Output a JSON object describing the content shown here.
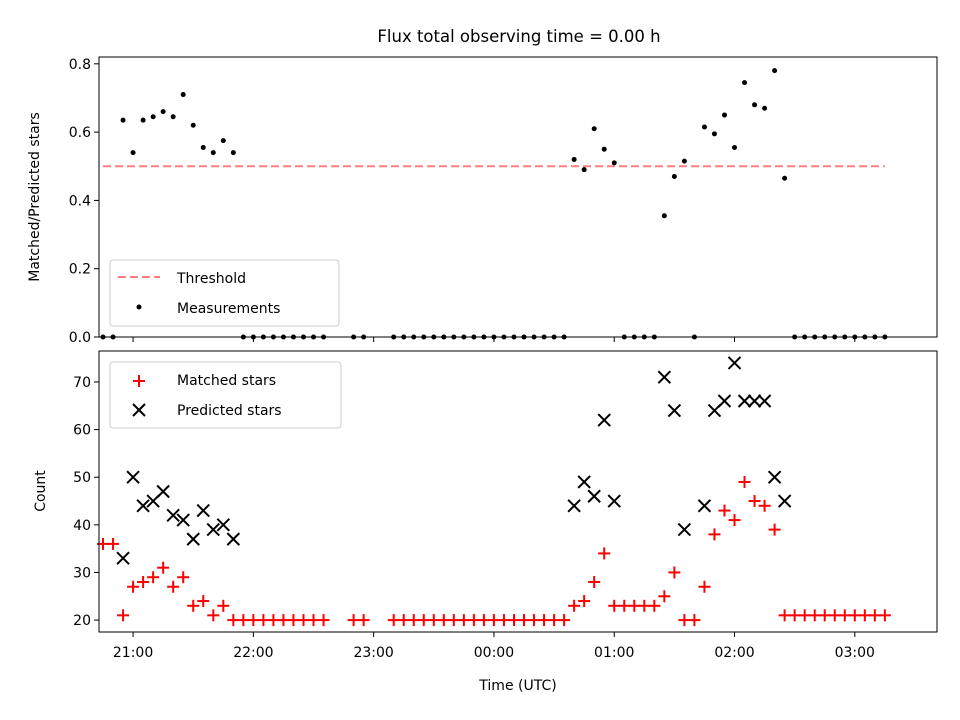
{
  "title": "Flux total observing time = 0.00 h",
  "chart_data": [
    {
      "type": "scatter",
      "ylabel": "Matched/Predicted stars",
      "xlabel": "",
      "ylim": [
        0,
        0.82
      ],
      "yticks": [
        0.0,
        0.2,
        0.4,
        0.6,
        0.8
      ],
      "ytick_labels": [
        "0.0",
        "0.2",
        "0.4",
        "0.6",
        "0.8"
      ],
      "xlim": [
        "20:43",
        "03:41"
      ],
      "legend_position": "lower-left",
      "legend": [
        {
          "label": "Threshold",
          "marker": "dashed-line",
          "color": "#ff7f7f"
        },
        {
          "label": "Measurements",
          "marker": "dot",
          "color": "#000000"
        }
      ],
      "threshold": {
        "value": 0.5,
        "x_start": "20:45",
        "x_end": "03:15",
        "color": "#ff7f7f"
      },
      "series": [
        {
          "name": "Measurements",
          "color": "#000000",
          "points": [
            [
              "20:45",
              0.0
            ],
            [
              "20:50",
              0.0
            ],
            [
              "20:55",
              0.635
            ],
            [
              "21:00",
              0.54
            ],
            [
              "21:05",
              0.635
            ],
            [
              "21:10",
              0.645
            ],
            [
              "21:15",
              0.66
            ],
            [
              "21:20",
              0.645
            ],
            [
              "21:25",
              0.71
            ],
            [
              "21:30",
              0.62
            ],
            [
              "21:35",
              0.555
            ],
            [
              "21:40",
              0.54
            ],
            [
              "21:45",
              0.575
            ],
            [
              "21:50",
              0.54
            ],
            [
              "21:55",
              0.0
            ],
            [
              "22:00",
              0.0
            ],
            [
              "22:05",
              0.0
            ],
            [
              "22:10",
              0.0
            ],
            [
              "22:15",
              0.0
            ],
            [
              "22:20",
              0.0
            ],
            [
              "22:25",
              0.0
            ],
            [
              "22:30",
              0.0
            ],
            [
              "22:35",
              0.0
            ],
            [
              "22:50",
              0.0
            ],
            [
              "22:55",
              0.0
            ],
            [
              "23:10",
              0.0
            ],
            [
              "23:15",
              0.0
            ],
            [
              "23:20",
              0.0
            ],
            [
              "23:25",
              0.0
            ],
            [
              "23:30",
              0.0
            ],
            [
              "23:35",
              0.0
            ],
            [
              "23:40",
              0.0
            ],
            [
              "23:45",
              0.0
            ],
            [
              "23:50",
              0.0
            ],
            [
              "23:55",
              0.0
            ],
            [
              "00:00",
              0.0
            ],
            [
              "00:05",
              0.0
            ],
            [
              "00:10",
              0.0
            ],
            [
              "00:15",
              0.0
            ],
            [
              "00:20",
              0.0
            ],
            [
              "00:25",
              0.0
            ],
            [
              "00:30",
              0.0
            ],
            [
              "00:35",
              0.0
            ],
            [
              "00:40",
              0.52
            ],
            [
              "00:45",
              0.49
            ],
            [
              "00:50",
              0.61
            ],
            [
              "00:55",
              0.55
            ],
            [
              "01:00",
              0.51
            ],
            [
              "01:05",
              0.0
            ],
            [
              "01:10",
              0.0
            ],
            [
              "01:15",
              0.0
            ],
            [
              "01:20",
              0.0
            ],
            [
              "01:25",
              0.355
            ],
            [
              "01:30",
              0.47
            ],
            [
              "01:35",
              0.515
            ],
            [
              "01:40",
              0.0
            ],
            [
              "01:45",
              0.615
            ],
            [
              "01:50",
              0.595
            ],
            [
              "01:55",
              0.65
            ],
            [
              "02:00",
              0.555
            ],
            [
              "02:05",
              0.745
            ],
            [
              "02:10",
              0.68
            ],
            [
              "02:15",
              0.67
            ],
            [
              "02:20",
              0.78
            ],
            [
              "02:25",
              0.465
            ],
            [
              "02:30",
              0.0
            ],
            [
              "02:35",
              0.0
            ],
            [
              "02:40",
              0.0
            ],
            [
              "02:45",
              0.0
            ],
            [
              "02:50",
              0.0
            ],
            [
              "02:55",
              0.0
            ],
            [
              "03:00",
              0.0
            ],
            [
              "03:05",
              0.0
            ],
            [
              "03:10",
              0.0
            ],
            [
              "03:15",
              0.0
            ]
          ]
        }
      ]
    },
    {
      "type": "scatter",
      "ylabel": "Count",
      "xlabel": "Time (UTC)",
      "ylim": [
        17.5,
        76.5
      ],
      "yticks": [
        20,
        30,
        40,
        50,
        60,
        70
      ],
      "ytick_labels": [
        "20",
        "30",
        "40",
        "50",
        "60",
        "70"
      ],
      "xlim": [
        "20:43",
        "03:41"
      ],
      "xticks": [
        "21:00",
        "22:00",
        "23:00",
        "00:00",
        "01:00",
        "02:00",
        "03:00"
      ],
      "xtick_labels": [
        "21:00",
        "22:00",
        "23:00",
        "00:00",
        "01:00",
        "02:00",
        "03:00"
      ],
      "legend_position": "upper-left",
      "legend": [
        {
          "label": "Matched stars",
          "marker": "plus",
          "color": "#ff0000"
        },
        {
          "label": "Predicted stars",
          "marker": "x",
          "color": "#000000"
        }
      ],
      "series": [
        {
          "name": "Matched stars",
          "marker": "plus",
          "color": "#ff0000",
          "points": [
            [
              "20:45",
              36
            ],
            [
              "20:50",
              36
            ],
            [
              "20:55",
              21
            ],
            [
              "21:00",
              27
            ],
            [
              "21:05",
              28
            ],
            [
              "21:10",
              29
            ],
            [
              "21:15",
              31
            ],
            [
              "21:20",
              27
            ],
            [
              "21:25",
              29
            ],
            [
              "21:30",
              23
            ],
            [
              "21:35",
              24
            ],
            [
              "21:40",
              21
            ],
            [
              "21:45",
              23
            ],
            [
              "21:50",
              20
            ],
            [
              "21:55",
              20
            ],
            [
              "22:00",
              20
            ],
            [
              "22:05",
              20
            ],
            [
              "22:10",
              20
            ],
            [
              "22:15",
              20
            ],
            [
              "22:20",
              20
            ],
            [
              "22:25",
              20
            ],
            [
              "22:30",
              20
            ],
            [
              "22:35",
              20
            ],
            [
              "22:50",
              20
            ],
            [
              "22:55",
              20
            ],
            [
              "23:10",
              20
            ],
            [
              "23:15",
              20
            ],
            [
              "23:20",
              20
            ],
            [
              "23:25",
              20
            ],
            [
              "23:30",
              20
            ],
            [
              "23:35",
              20
            ],
            [
              "23:40",
              20
            ],
            [
              "23:45",
              20
            ],
            [
              "23:50",
              20
            ],
            [
              "23:55",
              20
            ],
            [
              "00:00",
              20
            ],
            [
              "00:05",
              20
            ],
            [
              "00:10",
              20
            ],
            [
              "00:15",
              20
            ],
            [
              "00:20",
              20
            ],
            [
              "00:25",
              20
            ],
            [
              "00:30",
              20
            ],
            [
              "00:35",
              20
            ],
            [
              "00:40",
              23
            ],
            [
              "00:45",
              24
            ],
            [
              "00:50",
              28
            ],
            [
              "00:55",
              34
            ],
            [
              "01:00",
              23
            ],
            [
              "01:05",
              23
            ],
            [
              "01:10",
              23
            ],
            [
              "01:15",
              23
            ],
            [
              "01:20",
              23
            ],
            [
              "01:25",
              25
            ],
            [
              "01:30",
              30
            ],
            [
              "01:35",
              20
            ],
            [
              "01:40",
              20
            ],
            [
              "01:45",
              27
            ],
            [
              "01:50",
              38
            ],
            [
              "01:55",
              43
            ],
            [
              "02:00",
              41
            ],
            [
              "02:05",
              49
            ],
            [
              "02:10",
              45
            ],
            [
              "02:15",
              44
            ],
            [
              "02:20",
              39
            ],
            [
              "02:25",
              21
            ],
            [
              "02:30",
              21
            ],
            [
              "02:35",
              21
            ],
            [
              "02:40",
              21
            ],
            [
              "02:45",
              21
            ],
            [
              "02:50",
              21
            ],
            [
              "02:55",
              21
            ],
            [
              "03:00",
              21
            ],
            [
              "03:05",
              21
            ],
            [
              "03:10",
              21
            ],
            [
              "03:15",
              21
            ]
          ]
        },
        {
          "name": "Predicted stars",
          "marker": "x",
          "color": "#000000",
          "points": [
            [
              "20:55",
              33
            ],
            [
              "21:00",
              50
            ],
            [
              "21:05",
              44
            ],
            [
              "21:10",
              45
            ],
            [
              "21:15",
              47
            ],
            [
              "21:20",
              42
            ],
            [
              "21:25",
              41
            ],
            [
              "21:30",
              37
            ],
            [
              "21:35",
              43
            ],
            [
              "21:40",
              39
            ],
            [
              "21:45",
              40
            ],
            [
              "21:50",
              37
            ],
            [
              "00:40",
              44
            ],
            [
              "00:45",
              49
            ],
            [
              "00:50",
              46
            ],
            [
              "00:55",
              62
            ],
            [
              "01:00",
              45
            ],
            [
              "01:25",
              71
            ],
            [
              "01:30",
              64
            ],
            [
              "01:35",
              39
            ],
            [
              "01:45",
              44
            ],
            [
              "01:50",
              64
            ],
            [
              "01:55",
              66
            ],
            [
              "02:00",
              74
            ],
            [
              "02:05",
              66
            ],
            [
              "02:10",
              66
            ],
            [
              "02:15",
              66
            ],
            [
              "02:20",
              50
            ],
            [
              "02:25",
              45
            ]
          ]
        }
      ]
    }
  ]
}
